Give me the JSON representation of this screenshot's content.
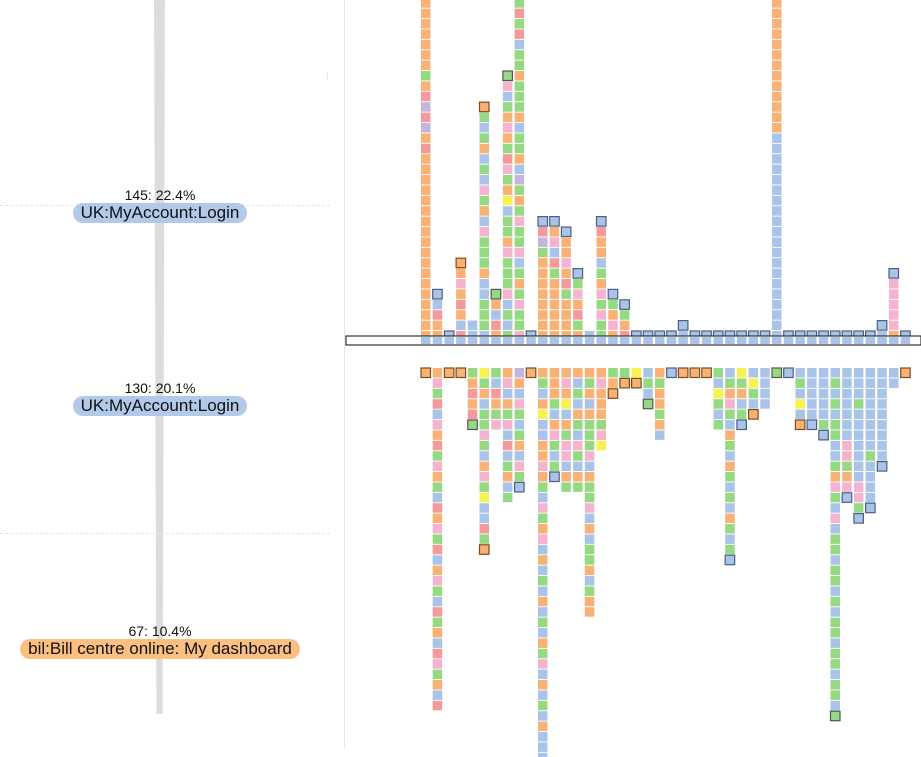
{
  "funnel_steps": [
    {
      "stat": "145: 22.4%",
      "page": "UK:MyAccount:Login",
      "color": "#b2c9ea"
    },
    {
      "stat": "130: 20.1%",
      "page": "UK:MyAccount:Login",
      "color": "#b2c9ea"
    },
    {
      "stat": "67: 10.4%",
      "page": "bil:Bill centre online: My dashboard",
      "color": "#fbbf82"
    }
  ],
  "chart_data": {
    "type": "stacked-cell-columns",
    "title": "",
    "xlabel": "",
    "ylabel": "",
    "description": "Each column is one visitor path; each square is one page view. Squares above the center bar are steps before the anchor page, squares below are steps after. Outlined squares mark path endpoints.",
    "colors": {
      "B": "#a9c4e8",
      "O": "#f8b276",
      "G": "#95da83",
      "P": "#f5b3cf",
      "R": "#f59a9a",
      "L": "#c5b5dc",
      "Y": "#f7f24f"
    },
    "outline_colors": {
      "B": "#4c5f82",
      "O": "#7d4c1a"
    },
    "anchor_color": "#a9c4e8",
    "columns": [
      {
        "up": "BGOGOOGOOOOOOOOOOOOOOGORLRLOROOOOOOOOOOOOOOOOOO",
        "up_end": true,
        "down": "O",
        "down_end": true
      },
      {
        "up": "BBROO",
        "up_end": true,
        "down": "OPGRBPORGPOGBROPGRBOPGBRGOBRPGOBR",
        "down_end": false
      },
      {
        "up": "B",
        "up_end": true,
        "down": "O",
        "down_end": true
      },
      {
        "up": "OOPOROBR",
        "up_end": true,
        "down": "O",
        "down_end": true
      },
      {
        "up": "BB",
        "up_end": false,
        "down": "GORORG",
        "down_end": true
      },
      {
        "up": "OGBGOBGBPGOBPGGGOBBGGGB",
        "up_end": true,
        "down": "YGOBGGPGBOPGYBBRGO",
        "down_end": true
      },
      {
        "up": "GOBRO",
        "up_end": true,
        "down": "GBROGP",
        "down_end": false
      },
      {
        "up": "GPBGOPOGRPGOYBGGOPGGGPBGBG",
        "up_end": true,
        "down": "OPBOGPBRBGOBG",
        "down_end": false
      },
      {
        "up": "PGBLOPGRGRBGGOGGGOBGGOBLGOGPGGPBGOGPGGP",
        "up_end": false,
        "down": "LOBPGBGOBPGB",
        "down_end": true
      },
      {
        "up": "B",
        "up_end": true,
        "down": "O",
        "down_end": true
      },
      {
        "up": "BRLGOOOOOOOO",
        "up_end": true,
        "down": "OGBOYBBOOPOGBPGOPBOBGBOBGBOGPBOBGBOBBBBBB",
        "down_end": false
      },
      {
        "up": "BOPBRGOOOOOO",
        "up_end": true,
        "down": "OOOGBOPGBGB",
        "down_end": true
      },
      {
        "up": "BOOPORGOOOO",
        "up_end": true,
        "down": "OPOYBOGPPBOG",
        "down_end": false
      },
      {
        "up": "BGPORGO",
        "up_end": true,
        "down": "OBGBOGBPGBOG",
        "down_end": false
      },
      {
        "up": "B",
        "up_end": false,
        "down": "OGOBOGGGPBOGGPBOBGGOBGOO",
        "down_end": false
      },
      {
        "up": "BROOBGOPGPGG",
        "up_end": true,
        "down": "OPOOOGPY",
        "down_end": false
      },
      {
        "up": "BGOPO",
        "up_end": true,
        "down": "GOO",
        "down_end": true
      },
      {
        "up": "BGOR",
        "up_end": true,
        "down": "GO",
        "down_end": true
      },
      {
        "up": "B",
        "up_end": true,
        "down": "YO",
        "down_end": true
      },
      {
        "up": "B",
        "up_end": true,
        "down": "BGBG",
        "down_end": true
      },
      {
        "up": "B",
        "up_end": true,
        "down": "OGOOGOB",
        "down_end": false
      },
      {
        "up": "B",
        "up_end": true,
        "down": "B",
        "down_end": true
      },
      {
        "up": "BB",
        "up_end": true,
        "down": "O",
        "down_end": true
      },
      {
        "up": "B",
        "up_end": true,
        "down": "O",
        "down_end": true
      },
      {
        "up": "B",
        "up_end": true,
        "down": "O",
        "down_end": true
      },
      {
        "up": "B",
        "up_end": true,
        "down": "GBYGBG",
        "down_end": false
      },
      {
        "up": "B",
        "up_end": true,
        "down": "BGOPGBOGBOGBGBOGBGB",
        "down_end": true
      },
      {
        "up": "B",
        "up_end": true,
        "down": "YGOBGB",
        "down_end": true
      },
      {
        "up": "B",
        "up_end": true,
        "down": "BYGBO",
        "down_end": true
      },
      {
        "up": "B",
        "up_end": true,
        "down": "BBBB",
        "down_end": false
      },
      {
        "up": "BBOOOOOOOOOOOOOOOOOOOOBBBBBBBBBBBBBBBBBBBB",
        "up_end": true,
        "down": "G",
        "down_end": true
      },
      {
        "up": "B",
        "up_end": true,
        "down": "B",
        "down_end": true
      },
      {
        "up": "B",
        "up_end": true,
        "down": "BGBYBO",
        "down_end": true
      },
      {
        "up": "B",
        "up_end": true,
        "down": "BBBBBB",
        "down_end": true
      },
      {
        "up": "B",
        "up_end": true,
        "down": "BBBBBGB",
        "down_end": true
      },
      {
        "up": "B",
        "up_end": true,
        "down": "BGBGBGGBBGOPGBPBGGBGGBGBGGBGGBGGBG",
        "down_end": true
      },
      {
        "up": "B",
        "up_end": true,
        "down": "BBBBBBBPPGOPB",
        "down_end": true
      },
      {
        "up": "B",
        "up_end": true,
        "down": "BBBGBBBBBBBPPGB",
        "down_end": true
      },
      {
        "up": "B",
        "up_end": true,
        "down": "BBBBBBBBGBBBBB",
        "down_end": true
      },
      {
        "up": "BB",
        "up_end": true,
        "down": "BBBBBBBBBB",
        "down_end": true
      },
      {
        "up": "BPPPPPO",
        "up_end": true,
        "down": "BB",
        "down_end": false
      },
      {
        "up": "B",
        "up_end": true,
        "down": "O",
        "down_end": true
      }
    ]
  }
}
